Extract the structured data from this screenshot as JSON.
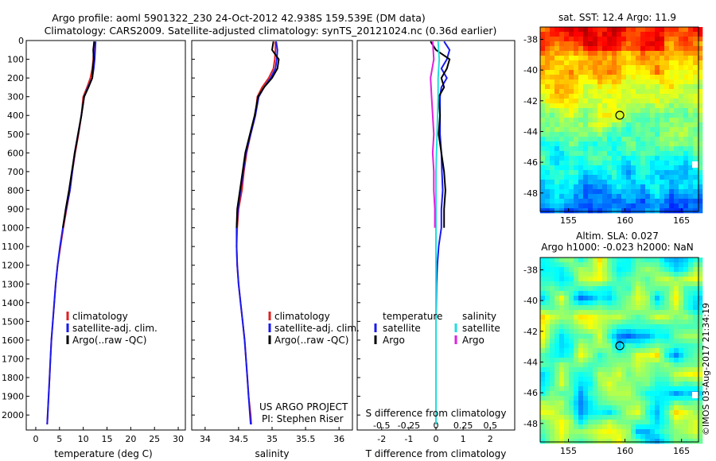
{
  "header": {
    "line1": "Argo profile: aoml 5901322_230 24-Oct-2012 42.938S 159.539E (DM data)",
    "line2": "Climatology: CARS2009. Satellite-adjusted climatology: synTS_20121024.nc (0.36d earlier)"
  },
  "colors": {
    "climatology": "#dd2222",
    "satellite": "#1a1aee",
    "argo": "#000000",
    "sal_satellite": "#22dddd",
    "sal_argo": "#dd22dd"
  },
  "chart_data": [
    {
      "type": "line",
      "name": "temperature-profile",
      "xlabel": "temperature (deg C)",
      "ylabel": "",
      "xlim": [
        -2,
        31.5
      ],
      "ylim": [
        0,
        2080
      ],
      "yreversed": true,
      "xticks": [
        0,
        5,
        10,
        15,
        20,
        25,
        30
      ],
      "yticks": [
        0,
        100,
        200,
        300,
        400,
        500,
        600,
        700,
        800,
        900,
        1000,
        1100,
        1200,
        1300,
        1400,
        1500,
        1600,
        1700,
        1800,
        1900,
        2000
      ],
      "legend": [
        "climatology",
        "satellite-adj. clim.",
        "Argo(..raw -QC)"
      ],
      "series": [
        {
          "name": "climatology",
          "color": "#dd2222",
          "points": [
            [
              12.3,
              5
            ],
            [
              12.2,
              50
            ],
            [
              12.1,
              100
            ],
            [
              11.9,
              150
            ],
            [
              11.5,
              200
            ],
            [
              10.8,
              250
            ],
            [
              10.0,
              300
            ],
            [
              9.6,
              400
            ],
            [
              9.0,
              500
            ],
            [
              8.3,
              600
            ],
            [
              7.7,
              700
            ],
            [
              7.2,
              800
            ],
            [
              6.5,
              900
            ],
            [
              5.8,
              1000
            ],
            [
              5.2,
              1100
            ],
            [
              4.6,
              1200
            ],
            [
              4.2,
              1300
            ],
            [
              3.9,
              1400
            ],
            [
              3.6,
              1500
            ],
            [
              3.3,
              1600
            ],
            [
              3.1,
              1700
            ],
            [
              2.9,
              1800
            ],
            [
              2.7,
              1900
            ],
            [
              2.5,
              2000
            ],
            [
              2.4,
              2050
            ]
          ]
        },
        {
          "name": "satellite-adj. clim.",
          "color": "#1a1aee",
          "points": [
            [
              12.6,
              5
            ],
            [
              12.5,
              50
            ],
            [
              12.4,
              100
            ],
            [
              12.2,
              150
            ],
            [
              11.9,
              200
            ],
            [
              11.0,
              250
            ],
            [
              10.2,
              300
            ],
            [
              9.6,
              400
            ],
            [
              8.9,
              500
            ],
            [
              8.2,
              600
            ],
            [
              7.7,
              700
            ],
            [
              7.2,
              800
            ],
            [
              6.4,
              900
            ],
            [
              5.7,
              1000
            ],
            [
              5.1,
              1100
            ],
            [
              4.6,
              1200
            ],
            [
              4.2,
              1300
            ],
            [
              3.9,
              1400
            ],
            [
              3.6,
              1500
            ],
            [
              3.3,
              1600
            ],
            [
              3.1,
              1700
            ],
            [
              2.9,
              1800
            ],
            [
              2.7,
              1900
            ],
            [
              2.5,
              2000
            ],
            [
              2.4,
              2050
            ]
          ]
        },
        {
          "name": "Argo(..raw -QC)",
          "color": "#000000",
          "points": [
            [
              12.3,
              5
            ],
            [
              12.1,
              50
            ],
            [
              12.2,
              100
            ],
            [
              12.0,
              150
            ],
            [
              11.9,
              200
            ],
            [
              11.1,
              250
            ],
            [
              10.2,
              300
            ],
            [
              9.6,
              400
            ],
            [
              8.9,
              500
            ],
            [
              8.2,
              600
            ],
            [
              7.6,
              700
            ],
            [
              7.0,
              800
            ],
            [
              6.3,
              900
            ],
            [
              5.7,
              1000
            ]
          ]
        }
      ]
    },
    {
      "type": "line",
      "name": "salinity-profile",
      "xlabel": "salinity",
      "ylabel": "",
      "xlim": [
        33.8,
        36.2
      ],
      "ylim": [
        0,
        2080
      ],
      "yreversed": true,
      "xticks": [
        34,
        34.5,
        35,
        35.5,
        36
      ],
      "legend": [
        "climatology",
        "satellite-adj. clim.",
        "Argo(..raw -QC)"
      ],
      "annotation_line1": "US ARGO PROJECT",
      "annotation_line2": "PI: Stephen Riser",
      "series": [
        {
          "name": "climatology",
          "color": "#dd2222",
          "points": [
            [
              35.05,
              5
            ],
            [
              35.05,
              50
            ],
            [
              35.04,
              100
            ],
            [
              35.02,
              150
            ],
            [
              34.95,
              200
            ],
            [
              34.85,
              250
            ],
            [
              34.78,
              300
            ],
            [
              34.75,
              400
            ],
            [
              34.68,
              500
            ],
            [
              34.62,
              600
            ],
            [
              34.58,
              700
            ],
            [
              34.55,
              800
            ],
            [
              34.5,
              900
            ],
            [
              34.48,
              1000
            ],
            [
              34.47,
              1100
            ],
            [
              34.48,
              1200
            ],
            [
              34.5,
              1300
            ],
            [
              34.53,
              1400
            ],
            [
              34.56,
              1500
            ],
            [
              34.59,
              1600
            ],
            [
              34.61,
              1700
            ],
            [
              34.63,
              1800
            ],
            [
              34.65,
              1900
            ],
            [
              34.68,
              2000
            ],
            [
              34.69,
              2050
            ]
          ]
        },
        {
          "name": "satellite-adj. clim.",
          "color": "#1a1aee",
          "points": [
            [
              35.06,
              5
            ],
            [
              35.08,
              50
            ],
            [
              35.07,
              100
            ],
            [
              35.05,
              150
            ],
            [
              34.98,
              200
            ],
            [
              34.88,
              250
            ],
            [
              34.8,
              300
            ],
            [
              34.75,
              400
            ],
            [
              34.68,
              500
            ],
            [
              34.61,
              600
            ],
            [
              34.57,
              700
            ],
            [
              34.53,
              800
            ],
            [
              34.49,
              900
            ],
            [
              34.47,
              1000
            ],
            [
              34.47,
              1100
            ],
            [
              34.48,
              1200
            ],
            [
              34.5,
              1300
            ],
            [
              34.53,
              1400
            ],
            [
              34.56,
              1500
            ],
            [
              34.59,
              1600
            ],
            [
              34.61,
              1700
            ],
            [
              34.63,
              1800
            ],
            [
              34.65,
              1900
            ],
            [
              34.67,
              2000
            ],
            [
              34.68,
              2050
            ]
          ]
        },
        {
          "name": "Argo(..raw -QC)",
          "color": "#000000",
          "points": [
            [
              35.02,
              5
            ],
            [
              35.0,
              50
            ],
            [
              35.1,
              100
            ],
            [
              35.08,
              150
            ],
            [
              35.0,
              200
            ],
            [
              34.88,
              250
            ],
            [
              34.79,
              300
            ],
            [
              34.74,
              400
            ],
            [
              34.67,
              500
            ],
            [
              34.6,
              600
            ],
            [
              34.56,
              700
            ],
            [
              34.52,
              800
            ],
            [
              34.48,
              900
            ],
            [
              34.47,
              1000
            ]
          ]
        }
      ]
    },
    {
      "type": "line",
      "name": "difference-profile",
      "xlabel": "T difference from climatology",
      "xlabel2": "S difference from climatology",
      "xlim": [
        -2.9,
        2.9
      ],
      "ylim": [
        0,
        2080
      ],
      "yreversed": true,
      "xticks": [
        -2,
        -1,
        0,
        1,
        2
      ],
      "xticks2": [
        -0.5,
        -0.25,
        0,
        0.25,
        0.5
      ],
      "legend_head_t": "temperature",
      "legend_head_s": "salinity",
      "legend": [
        "satellite",
        "Argo",
        "satellite",
        "Argo"
      ],
      "series": [
        {
          "name": "satellite",
          "group": "temperature",
          "color": "#1a1aee",
          "points": [
            [
              0.3,
              5
            ],
            [
              0.5,
              50
            ],
            [
              0.4,
              100
            ],
            [
              0.2,
              150
            ],
            [
              0.4,
              200
            ],
            [
              0.2,
              250
            ],
            [
              0.15,
              300
            ],
            [
              0.15,
              400
            ],
            [
              0.15,
              500
            ],
            [
              0.2,
              600
            ],
            [
              0.22,
              700
            ],
            [
              0.25,
              800
            ],
            [
              0.2,
              900
            ],
            [
              0.2,
              1000
            ],
            [
              0.1,
              1100
            ],
            [
              0.05,
              1200
            ],
            [
              0.02,
              1300
            ],
            [
              0,
              1500
            ],
            [
              0,
              1700
            ],
            [
              0,
              1900
            ],
            [
              0,
              2050
            ]
          ]
        },
        {
          "name": "Argo",
          "group": "temperature",
          "color": "#000000",
          "points": [
            [
              -0.2,
              5
            ],
            [
              0,
              50
            ],
            [
              0.5,
              100
            ],
            [
              0.4,
              150
            ],
            [
              0.2,
              200
            ],
            [
              0.3,
              250
            ],
            [
              0.1,
              300
            ],
            [
              0.15,
              400
            ],
            [
              0.1,
              500
            ],
            [
              0.2,
              600
            ],
            [
              0.3,
              700
            ],
            [
              0.35,
              800
            ],
            [
              0.3,
              900
            ],
            [
              0.3,
              950
            ],
            [
              0.3,
              1000
            ]
          ]
        },
        {
          "name": "satellite",
          "group": "salinity",
          "color": "#22dddd",
          "points": [
            [
              0.02,
              5
            ],
            [
              0.03,
              100
            ],
            [
              0.02,
              200
            ],
            [
              0.02,
              300
            ],
            [
              0.01,
              500
            ],
            [
              0,
              700
            ],
            [
              0,
              900
            ],
            [
              0,
              1100
            ],
            [
              0,
              1300
            ],
            [
              0,
              1500
            ],
            [
              0,
              1700
            ],
            [
              0,
              1900
            ],
            [
              0,
              2050
            ]
          ]
        },
        {
          "name": "Argo",
          "group": "salinity",
          "color": "#dd22dd",
          "points": [
            [
              -0.03,
              5
            ],
            [
              -0.02,
              100
            ],
            [
              -0.05,
              200
            ],
            [
              -0.04,
              300
            ],
            [
              -0.03,
              400
            ],
            [
              -0.02,
              500
            ],
            [
              -0.03,
              600
            ],
            [
              -0.02,
              700
            ],
            [
              -0.02,
              800
            ],
            [
              -0.01,
              900
            ],
            [
              -0.01,
              1000
            ]
          ]
        }
      ]
    },
    {
      "type": "heatmap",
      "name": "sst-map",
      "title": "sat. SST: 12.4 Argo: 11.9",
      "xlim": [
        152.5,
        166.5
      ],
      "ylim": [
        -49.2,
        -37.2
      ],
      "xticks": [
        155,
        160,
        165
      ],
      "yticks": [
        -38,
        -40,
        -42,
        -44,
        -46,
        -48
      ],
      "marker": [
        159.54,
        -42.94
      ]
    },
    {
      "type": "heatmap",
      "name": "sla-map",
      "title": "Altim. SLA: 0.027",
      "subtitle": "Argo h1000: -0.023 h2000: NaN",
      "xlim": [
        152.5,
        166.5
      ],
      "ylim": [
        -49.2,
        -37.2
      ],
      "xticks": [
        155,
        160,
        165
      ],
      "yticks": [
        -38,
        -40,
        -42,
        -44,
        -46,
        -48
      ],
      "marker": [
        159.54,
        -42.94
      ]
    }
  ],
  "credit": "©IMOS 03-Aug-2017 21:34:19"
}
